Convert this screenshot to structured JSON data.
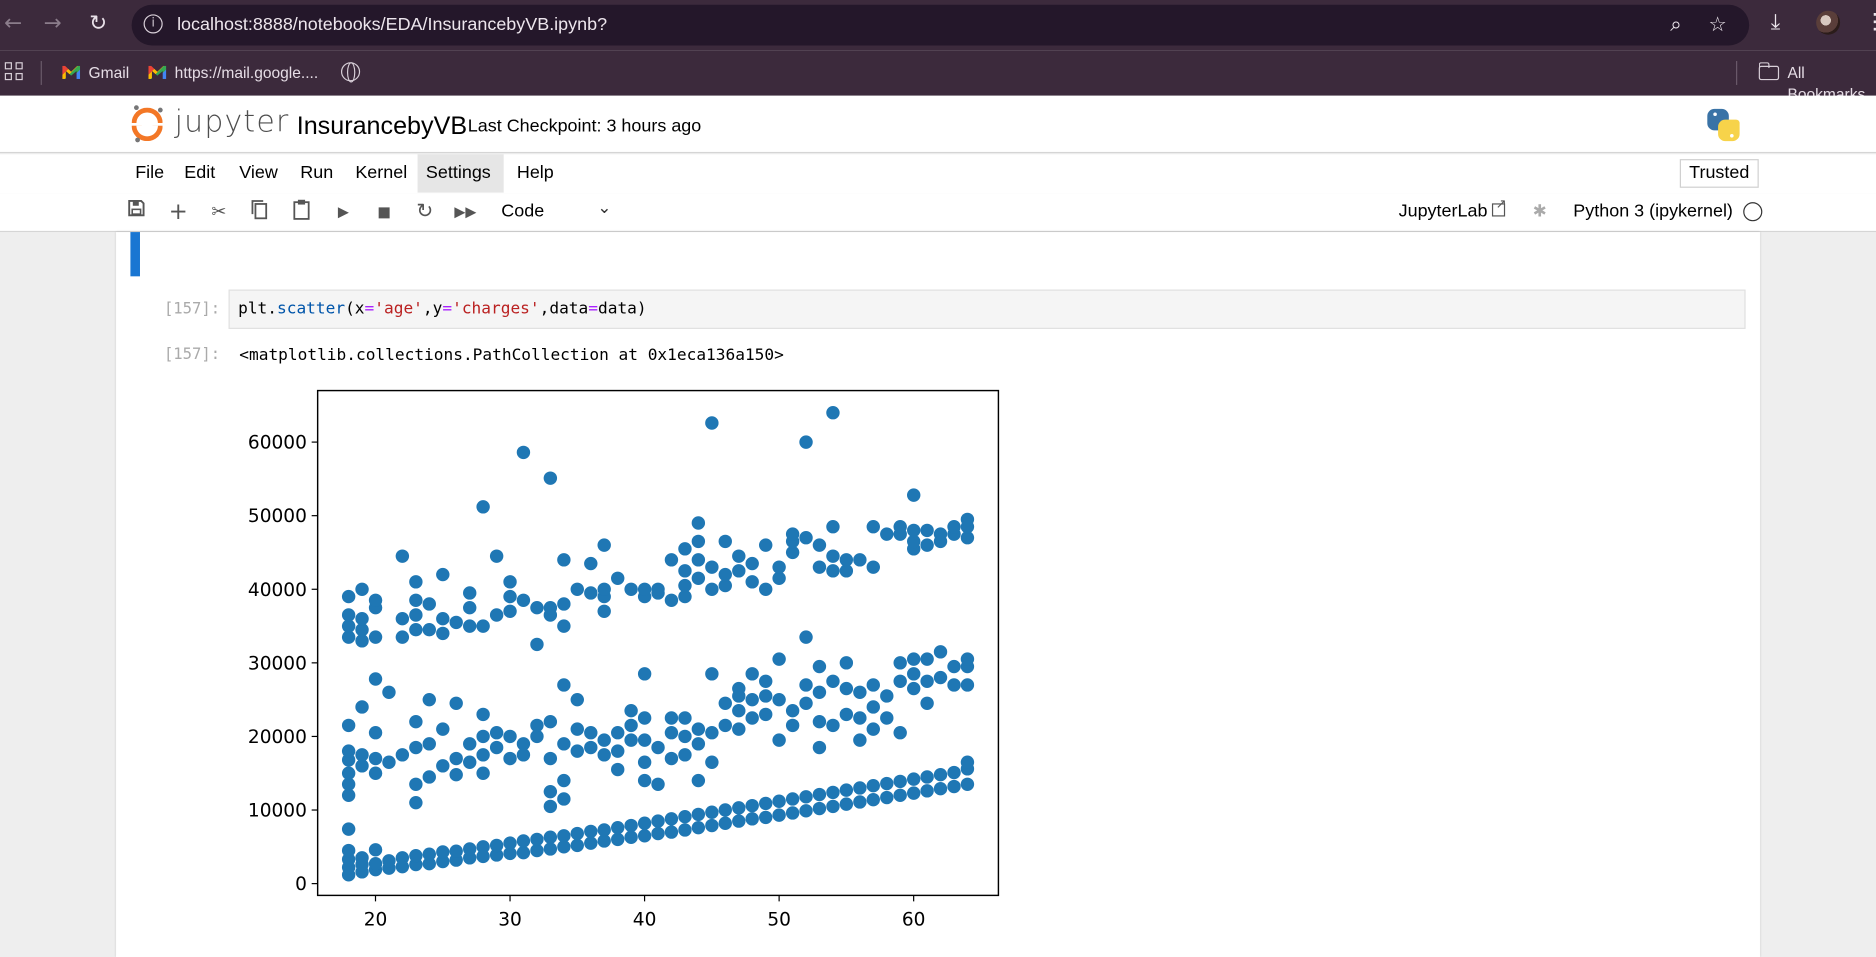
{
  "browser": {
    "url": "localhost:8888/notebooks/EDA/InsurancebyVB.ipynb?",
    "bookmarks": [
      {
        "label": "Gmail"
      },
      {
        "label": "https://mail.google...."
      }
    ],
    "all_bookmarks": "All Bookmarks"
  },
  "jupyter": {
    "wordmark": "jupyter",
    "notebook_title": "InsurancebyVB",
    "checkpoint": "Last Checkpoint: 3 hours ago",
    "menu": [
      "File",
      "Edit",
      "View",
      "Run",
      "Kernel",
      "Settings",
      "Help"
    ],
    "active_menu": "Settings",
    "trusted": "Trusted",
    "cell_type": "Code",
    "jupyterlab_link": "JupyterLab",
    "kernel": "Python 3 (ipykernel)"
  },
  "cell": {
    "in_prompt": "[157]:",
    "out_prompt": "[157]:",
    "code": {
      "fn_obj": "plt.",
      "fn_name": "scatter",
      "p1": "(x",
      "eq": "=",
      "s_age": "'age'",
      "comma1": ",y",
      "s_charges": "'charges'",
      "comma2": ",data",
      "tail": "data)"
    },
    "output": "<matplotlib.collections.PathCollection at 0x1eca136a150>"
  },
  "chart_data": {
    "type": "scatter",
    "color": "#1f77b4",
    "xlim": [
      15.7,
      66.3
    ],
    "ylim": [
      -1600,
      67000
    ],
    "x_ticks": [
      "20",
      "30",
      "40",
      "50",
      "60"
    ],
    "y_ticks": [
      "0",
      "10000",
      "20000",
      "30000",
      "40000",
      "50000",
      "60000"
    ],
    "x_tick_values": [
      20,
      30,
      40,
      50,
      60
    ],
    "y_tick_values": [
      0,
      10000,
      20000,
      30000,
      40000,
      50000,
      60000
    ],
    "points": [
      [
        18,
        1200
      ],
      [
        18,
        2200
      ],
      [
        18,
        3300
      ],
      [
        18,
        4500
      ],
      [
        18,
        7400
      ],
      [
        19,
        1600
      ],
      [
        19,
        2600
      ],
      [
        19,
        3500
      ],
      [
        20,
        1900
      ],
      [
        20,
        2700
      ],
      [
        20,
        4600
      ],
      [
        21,
        2100
      ],
      [
        21,
        3100
      ],
      [
        22,
        2300
      ],
      [
        22,
        3500
      ],
      [
        23,
        2600
      ],
      [
        23,
        3800
      ],
      [
        24,
        2700
      ],
      [
        24,
        4000
      ],
      [
        25,
        3000
      ],
      [
        25,
        4300
      ],
      [
        26,
        3200
      ],
      [
        26,
        4400
      ],
      [
        27,
        3500
      ],
      [
        27,
        4700
      ],
      [
        28,
        3700
      ],
      [
        28,
        5000
      ],
      [
        29,
        3900
      ],
      [
        29,
        5200
      ],
      [
        30,
        4100
      ],
      [
        30,
        5500
      ],
      [
        31,
        4200
      ],
      [
        31,
        5800
      ],
      [
        32,
        4500
      ],
      [
        32,
        6000
      ],
      [
        33,
        4700
      ],
      [
        33,
        6300
      ],
      [
        34,
        5000
      ],
      [
        34,
        6500
      ],
      [
        35,
        5200
      ],
      [
        35,
        6800
      ],
      [
        36,
        5500
      ],
      [
        36,
        7100
      ],
      [
        37,
        5800
      ],
      [
        37,
        7300
      ],
      [
        38,
        6000
      ],
      [
        38,
        7600
      ],
      [
        39,
        6300
      ],
      [
        39,
        7900
      ],
      [
        40,
        6500
      ],
      [
        40,
        8200
      ],
      [
        41,
        6800
      ],
      [
        41,
        8500
      ],
      [
        42,
        7000
      ],
      [
        42,
        8800
      ],
      [
        43,
        7300
      ],
      [
        43,
        9100
      ],
      [
        44,
        7600
      ],
      [
        44,
        9400
      ],
      [
        45,
        7900
      ],
      [
        45,
        9700
      ],
      [
        46,
        8200
      ],
      [
        46,
        10000
      ],
      [
        47,
        8500
      ],
      [
        47,
        10300
      ],
      [
        48,
        8800
      ],
      [
        48,
        10600
      ],
      [
        49,
        9000
      ],
      [
        49,
        10900
      ],
      [
        50,
        9300
      ],
      [
        50,
        11200
      ],
      [
        51,
        9600
      ],
      [
        51,
        11500
      ],
      [
        52,
        9900
      ],
      [
        52,
        11800
      ],
      [
        53,
        10200
      ],
      [
        53,
        12100
      ],
      [
        54,
        10500
      ],
      [
        54,
        12400
      ],
      [
        55,
        10800
      ],
      [
        55,
        12700
      ],
      [
        56,
        11100
      ],
      [
        56,
        13000
      ],
      [
        57,
        11400
      ],
      [
        57,
        13300
      ],
      [
        58,
        11700
      ],
      [
        58,
        13600
      ],
      [
        59,
        12000
      ],
      [
        59,
        13900
      ],
      [
        60,
        12300
      ],
      [
        60,
        14200
      ],
      [
        61,
        12600
      ],
      [
        61,
        14500
      ],
      [
        62,
        12900
      ],
      [
        62,
        14800
      ],
      [
        63,
        13200
      ],
      [
        63,
        15100
      ],
      [
        64,
        13500
      ],
      [
        64,
        15600
      ],
      [
        64,
        16500
      ],
      [
        18,
        12000
      ],
      [
        18,
        13500
      ],
      [
        18,
        15000
      ],
      [
        18,
        16800
      ],
      [
        18,
        18000
      ],
      [
        18,
        21500
      ],
      [
        19,
        16000
      ],
      [
        19,
        17500
      ],
      [
        19,
        24000
      ],
      [
        20,
        15000
      ],
      [
        20,
        17000
      ],
      [
        20,
        20500
      ],
      [
        20,
        27800
      ],
      [
        21,
        26000
      ],
      [
        21,
        16500
      ],
      [
        22,
        17500
      ],
      [
        23,
        11000
      ],
      [
        23,
        13500
      ],
      [
        23,
        18500
      ],
      [
        23,
        22000
      ],
      [
        24,
        14500
      ],
      [
        24,
        19000
      ],
      [
        24,
        25000
      ],
      [
        25,
        16000
      ],
      [
        25,
        21000
      ],
      [
        26,
        14800
      ],
      [
        26,
        17000
      ],
      [
        26,
        24500
      ],
      [
        27,
        16500
      ],
      [
        27,
        19000
      ],
      [
        28,
        15000
      ],
      [
        28,
        17500
      ],
      [
        28,
        20000
      ],
      [
        28,
        23000
      ],
      [
        29,
        18500
      ],
      [
        29,
        20500
      ],
      [
        30,
        17000
      ],
      [
        30,
        20000
      ],
      [
        31,
        17500
      ],
      [
        31,
        19000
      ],
      [
        32,
        20000
      ],
      [
        32,
        21500
      ],
      [
        33,
        10500
      ],
      [
        33,
        12500
      ],
      [
        33,
        17000
      ],
      [
        33,
        22000
      ],
      [
        34,
        11500
      ],
      [
        34,
        14000
      ],
      [
        34,
        19000
      ],
      [
        34,
        27000
      ],
      [
        35,
        18000
      ],
      [
        35,
        21000
      ],
      [
        35,
        25000
      ],
      [
        36,
        18500
      ],
      [
        36,
        20500
      ],
      [
        37,
        17500
      ],
      [
        37,
        19500
      ],
      [
        38,
        15500
      ],
      [
        38,
        18000
      ],
      [
        38,
        20500
      ],
      [
        39,
        19500
      ],
      [
        39,
        21500
      ],
      [
        39,
        23500
      ],
      [
        40,
        14000
      ],
      [
        40,
        16500
      ],
      [
        40,
        19500
      ],
      [
        40,
        22500
      ],
      [
        40,
        28500
      ],
      [
        41,
        13500
      ],
      [
        41,
        18500
      ],
      [
        42,
        17000
      ],
      [
        42,
        20500
      ],
      [
        42,
        22500
      ],
      [
        43,
        17500
      ],
      [
        43,
        20000
      ],
      [
        43,
        22500
      ],
      [
        44,
        14000
      ],
      [
        44,
        19000
      ],
      [
        44,
        21000
      ],
      [
        45,
        16500
      ],
      [
        45,
        20500
      ],
      [
        45,
        28500
      ],
      [
        46,
        21500
      ],
      [
        46,
        24500
      ],
      [
        47,
        21000
      ],
      [
        47,
        23500
      ],
      [
        47,
        25500
      ],
      [
        47,
        26500
      ],
      [
        48,
        22500
      ],
      [
        48,
        25000
      ],
      [
        48,
        28500
      ],
      [
        49,
        23000
      ],
      [
        49,
        25500
      ],
      [
        49,
        27500
      ],
      [
        50,
        19500
      ],
      [
        50,
        25000
      ],
      [
        50,
        30500
      ],
      [
        51,
        21500
      ],
      [
        51,
        23500
      ],
      [
        52,
        24500
      ],
      [
        52,
        27000
      ],
      [
        52,
        33500
      ],
      [
        53,
        18500
      ],
      [
        53,
        22000
      ],
      [
        53,
        26000
      ],
      [
        53,
        29500
      ],
      [
        54,
        21500
      ],
      [
        54,
        27500
      ],
      [
        55,
        23000
      ],
      [
        55,
        26500
      ],
      [
        55,
        30000
      ],
      [
        56,
        19500
      ],
      [
        56,
        22500
      ],
      [
        56,
        26000
      ],
      [
        57,
        21000
      ],
      [
        57,
        24000
      ],
      [
        57,
        27000
      ],
      [
        58,
        22500
      ],
      [
        58,
        25500
      ],
      [
        59,
        20500
      ],
      [
        59,
        27500
      ],
      [
        59,
        30000
      ],
      [
        60,
        26500
      ],
      [
        60,
        28500
      ],
      [
        60,
        30500
      ],
      [
        61,
        24500
      ],
      [
        61,
        27500
      ],
      [
        61,
        30500
      ],
      [
        62,
        28000
      ],
      [
        62,
        31500
      ],
      [
        63,
        27000
      ],
      [
        63,
        29500
      ],
      [
        64,
        27000
      ],
      [
        64,
        29500
      ],
      [
        64,
        30500
      ],
      [
        18,
        33500
      ],
      [
        18,
        35000
      ],
      [
        18,
        36500
      ],
      [
        18,
        39000
      ],
      [
        19,
        33000
      ],
      [
        19,
        34500
      ],
      [
        19,
        36000
      ],
      [
        19,
        40000
      ],
      [
        20,
        33500
      ],
      [
        20,
        37500
      ],
      [
        20,
        38500
      ],
      [
        22,
        33500
      ],
      [
        22,
        36000
      ],
      [
        22,
        44500
      ],
      [
        23,
        34500
      ],
      [
        23,
        36500
      ],
      [
        23,
        38500
      ],
      [
        23,
        41000
      ],
      [
        24,
        34500
      ],
      [
        24,
        38000
      ],
      [
        25,
        34000
      ],
      [
        25,
        36000
      ],
      [
        25,
        42000
      ],
      [
        26,
        35500
      ],
      [
        27,
        35000
      ],
      [
        27,
        37500
      ],
      [
        27,
        39500
      ],
      [
        28,
        35000
      ],
      [
        28,
        51200
      ],
      [
        29,
        36500
      ],
      [
        29,
        44500
      ],
      [
        30,
        37000
      ],
      [
        30,
        39000
      ],
      [
        30,
        41000
      ],
      [
        31,
        38500
      ],
      [
        31,
        58600
      ],
      [
        32,
        32500
      ],
      [
        32,
        37500
      ],
      [
        33,
        36500
      ],
      [
        33,
        37500
      ],
      [
        33,
        55100
      ],
      [
        34,
        35000
      ],
      [
        34,
        38000
      ],
      [
        34,
        44000
      ],
      [
        35,
        40000
      ],
      [
        36,
        39500
      ],
      [
        36,
        43500
      ],
      [
        37,
        37000
      ],
      [
        37,
        39000
      ],
      [
        37,
        40000
      ],
      [
        37,
        46000
      ],
      [
        38,
        41500
      ],
      [
        39,
        40000
      ],
      [
        40,
        39000
      ],
      [
        40,
        40000
      ],
      [
        41,
        39500
      ],
      [
        41,
        40000
      ],
      [
        42,
        38500
      ],
      [
        42,
        44000
      ],
      [
        43,
        39000
      ],
      [
        43,
        40500
      ],
      [
        43,
        42500
      ],
      [
        43,
        45500
      ],
      [
        44,
        41500
      ],
      [
        44,
        44000
      ],
      [
        44,
        46500
      ],
      [
        44,
        49000
      ],
      [
        45,
        40000
      ],
      [
        45,
        43000
      ],
      [
        45,
        62600
      ],
      [
        46,
        40500
      ],
      [
        46,
        42000
      ],
      [
        46,
        46500
      ],
      [
        47,
        42500
      ],
      [
        47,
        44500
      ],
      [
        48,
        41000
      ],
      [
        48,
        43500
      ],
      [
        49,
        40000
      ],
      [
        49,
        46000
      ],
      [
        50,
        41500
      ],
      [
        50,
        43000
      ],
      [
        51,
        45000
      ],
      [
        51,
        46500
      ],
      [
        51,
        47500
      ],
      [
        52,
        47000
      ],
      [
        52,
        60000
      ],
      [
        53,
        43000
      ],
      [
        53,
        46000
      ],
      [
        54,
        42500
      ],
      [
        54,
        44500
      ],
      [
        54,
        48500
      ],
      [
        54,
        64000
      ],
      [
        55,
        42500
      ],
      [
        55,
        44000
      ],
      [
        56,
        44000
      ],
      [
        57,
        43000
      ],
      [
        57,
        48500
      ],
      [
        58,
        47500
      ],
      [
        59,
        47500
      ],
      [
        59,
        48500
      ],
      [
        60,
        45500
      ],
      [
        60,
        46500
      ],
      [
        60,
        48000
      ],
      [
        60,
        52800
      ],
      [
        61,
        46000
      ],
      [
        61,
        48000
      ],
      [
        62,
        46500
      ],
      [
        62,
        47500
      ],
      [
        63,
        47500
      ],
      [
        63,
        48500
      ],
      [
        64,
        47000
      ],
      [
        64,
        48500
      ],
      [
        64,
        49500
      ]
    ]
  }
}
